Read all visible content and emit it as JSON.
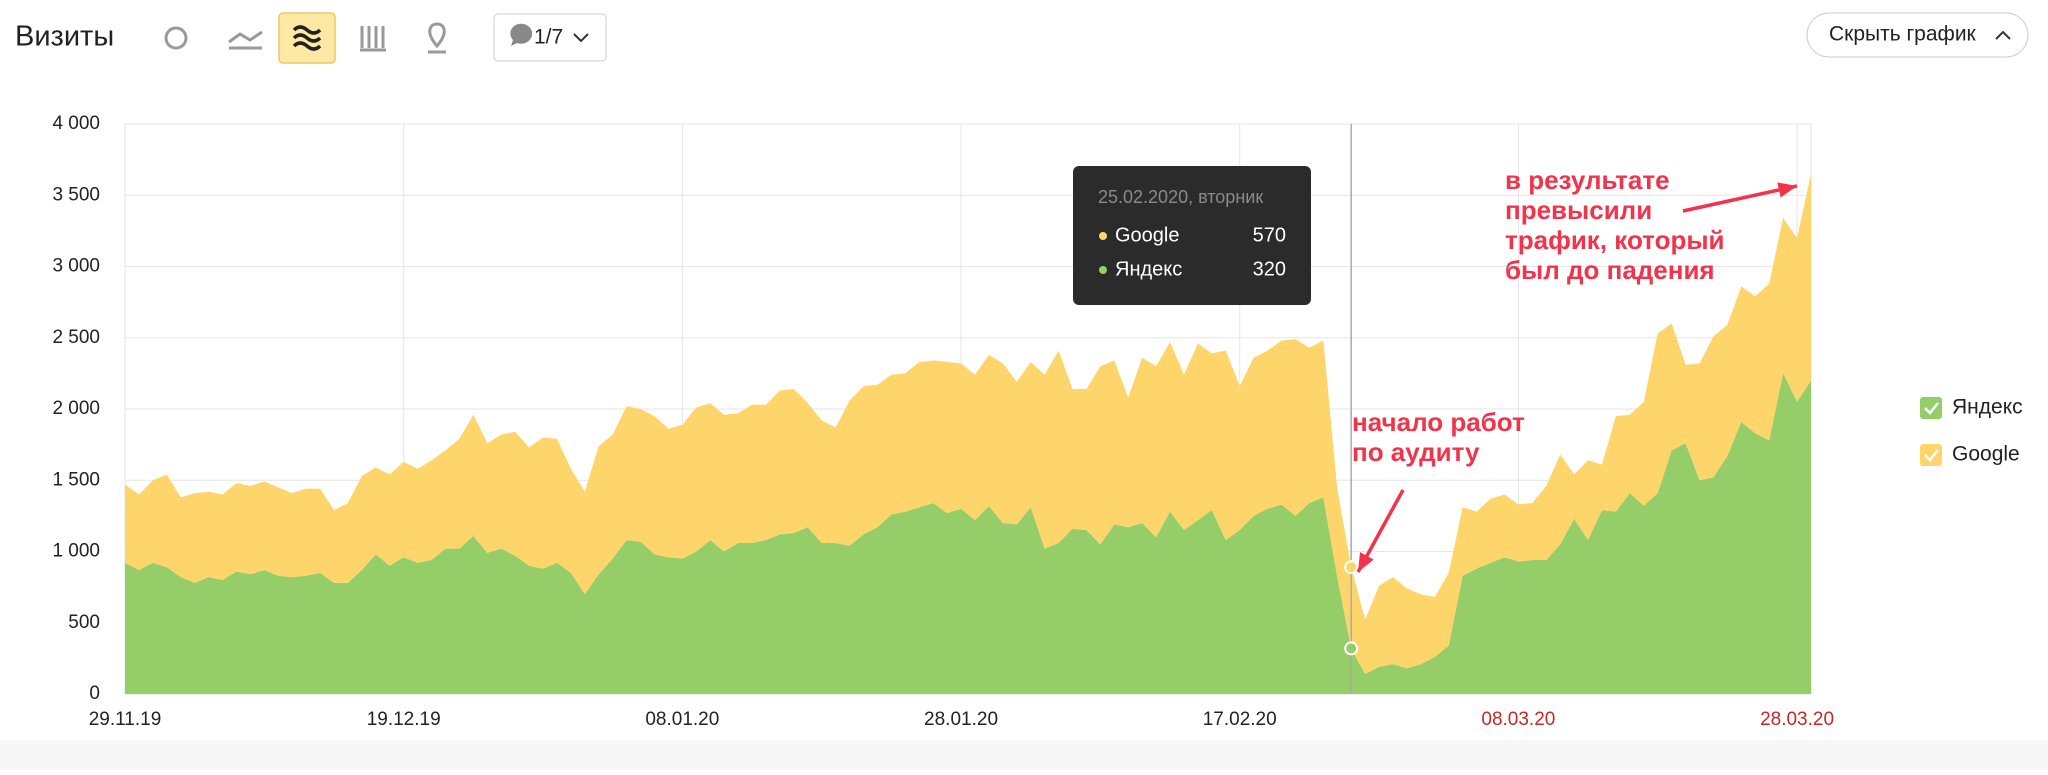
{
  "page": {
    "title": "Визиты",
    "comments": "1/7",
    "hide_button": "Скрыть график"
  },
  "chart_data": {
    "type": "stacked-area",
    "x": [
      "29.11.19",
      "30.11.19",
      "01.12.19",
      "02.12.19",
      "03.12.19",
      "04.12.19",
      "05.12.19",
      "06.12.19",
      "07.12.19",
      "08.12.19",
      "09.12.19",
      "10.12.19",
      "11.12.19",
      "12.12.19",
      "13.12.19",
      "14.12.19",
      "15.12.19",
      "16.12.19",
      "17.12.19",
      "18.12.19",
      "19.12.19",
      "20.12.19",
      "21.12.19",
      "22.12.19",
      "23.12.19",
      "24.12.19",
      "25.12.19",
      "26.12.19",
      "27.12.19",
      "28.12.19",
      "29.12.19",
      "30.12.19",
      "31.12.19",
      "01.01.20",
      "02.01.20",
      "03.01.20",
      "04.01.20",
      "05.01.20",
      "06.01.20",
      "07.01.20",
      "08.01.20",
      "09.01.20",
      "10.01.20",
      "11.01.20",
      "12.01.20",
      "13.01.20",
      "14.01.20",
      "15.01.20",
      "16.01.20",
      "17.01.20",
      "18.01.20",
      "19.01.20",
      "20.01.20",
      "21.01.20",
      "22.01.20",
      "23.01.20",
      "24.01.20",
      "25.01.20",
      "26.01.20",
      "27.01.20",
      "28.01.20",
      "29.01.20",
      "30.01.20",
      "31.01.20",
      "01.02.20",
      "02.02.20",
      "03.02.20",
      "04.02.20",
      "05.02.20",
      "06.02.20",
      "07.02.20",
      "08.02.20",
      "09.02.20",
      "10.02.20",
      "11.02.20",
      "12.02.20",
      "13.02.20",
      "14.02.20",
      "15.02.20",
      "16.02.20",
      "17.02.20",
      "18.02.20",
      "19.02.20",
      "20.02.20",
      "21.02.20",
      "22.02.20",
      "23.02.20",
      "24.02.20",
      "25.02.20",
      "26.02.20",
      "27.02.20",
      "28.02.20",
      "29.02.20",
      "01.03.20",
      "02.03.20",
      "03.03.20",
      "04.03.20",
      "05.03.20",
      "06.03.20",
      "07.03.20",
      "08.03.20",
      "09.03.20",
      "10.03.20",
      "11.03.20",
      "12.03.20",
      "13.03.20",
      "14.03.20",
      "15.03.20",
      "16.03.20",
      "17.03.20",
      "18.03.20",
      "19.03.20",
      "20.03.20",
      "21.03.20",
      "22.03.20",
      "23.03.20",
      "24.03.20",
      "25.03.20",
      "26.03.20",
      "27.03.20",
      "28.03.20",
      "29.03.20"
    ],
    "series": [
      {
        "name": "Яндекс",
        "color": "#95cd68",
        "values": [
          920,
          870,
          920,
          890,
          820,
          780,
          820,
          800,
          860,
          840,
          870,
          830,
          820,
          830,
          850,
          780,
          780,
          870,
          980,
          900,
          960,
          920,
          940,
          1020,
          1020,
          1110,
          990,
          1020,
          970,
          900,
          880,
          920,
          850,
          700,
          840,
          950,
          1080,
          1070,
          980,
          960,
          950,
          1000,
          1080,
          1000,
          1060,
          1060,
          1080,
          1120,
          1130,
          1170,
          1060,
          1060,
          1040,
          1120,
          1170,
          1260,
          1280,
          1310,
          1340,
          1270,
          1300,
          1220,
          1320,
          1200,
          1190,
          1310,
          1020,
          1060,
          1160,
          1150,
          1050,
          1190,
          1170,
          1200,
          1100,
          1280,
          1150,
          1220,
          1290,
          1080,
          1150,
          1250,
          1300,
          1330,
          1250,
          1340,
          1380,
          820,
          320,
          140,
          190,
          210,
          180,
          210,
          260,
          340,
          830,
          880,
          920,
          960,
          930,
          940,
          940,
          1050,
          1230,
          1080,
          1290,
          1280,
          1410,
          1320,
          1410,
          1710,
          1760,
          1500,
          1520,
          1670,
          1910,
          1830,
          1780,
          2250,
          2050,
          2200
        ]
      },
      {
        "name": "Google",
        "color": "#fed56b",
        "values": [
          550,
          530,
          580,
          650,
          560,
          630,
          600,
          600,
          620,
          620,
          620,
          620,
          590,
          610,
          590,
          510,
          560,
          660,
          610,
          640,
          670,
          660,
          700,
          690,
          770,
          850,
          770,
          800,
          870,
          830,
          920,
          870,
          730,
          720,
          900,
          870,
          940,
          930,
          970,
          900,
          940,
          1010,
          960,
          960,
          910,
          970,
          950,
          1010,
          1010,
          870,
          860,
          810,
          1020,
          1040,
          1000,
          980,
          970,
          1020,
          1000,
          1060,
          1020,
          1020,
          1060,
          1120,
          1000,
          1020,
          1220,
          1350,
          980,
          990,
          1250,
          1150,
          910,
          1160,
          1200,
          1190,
          1090,
          1240,
          1100,
          1330,
          1010,
          1110,
          1110,
          1150,
          1240,
          1090,
          1100,
          620,
          570,
          382,
          570,
          610,
          560,
          490,
          420,
          510,
          480,
          400,
          450,
          440,
          400,
          400,
          520,
          630,
          310,
          560,
          320,
          670,
          550,
          730,
          1120,
          890,
          550,
          820,
          990,
          920,
          950,
          960,
          1100,
          1090,
          1150,
          1450
        ]
      }
    ],
    "ylim": [
      0,
      4000
    ],
    "yticks": [
      0,
      500,
      {
        "value": 1000,
        "label": "1 000"
      },
      {
        "value": 1500,
        "label": "1 500"
      },
      {
        "value": 2000,
        "label": "2 000"
      },
      {
        "value": 2500,
        "label": "2 500"
      },
      {
        "value": 3000,
        "label": "3 000"
      },
      {
        "value": 3500,
        "label": "3 500"
      },
      {
        "value": 4000,
        "label": "4 000"
      }
    ],
    "xticks": [
      "29.11.19",
      "19.12.19",
      "08.01.20",
      "28.01.20",
      "17.02.20",
      "08.03.20",
      "28.03.20"
    ],
    "weekend_color": "#c62828",
    "grid": true,
    "legend": "right",
    "tooltip": {
      "title": "25.02.2020, вторник"
    },
    "annotations": [
      {
        "lines": [
          "начало работ",
          "по аудиту"
        ]
      },
      {
        "lines": [
          "в результате",
          "превысили",
          "трафик, который",
          "был до падения"
        ]
      }
    ],
    "annotation_color": "#f2334b"
  }
}
